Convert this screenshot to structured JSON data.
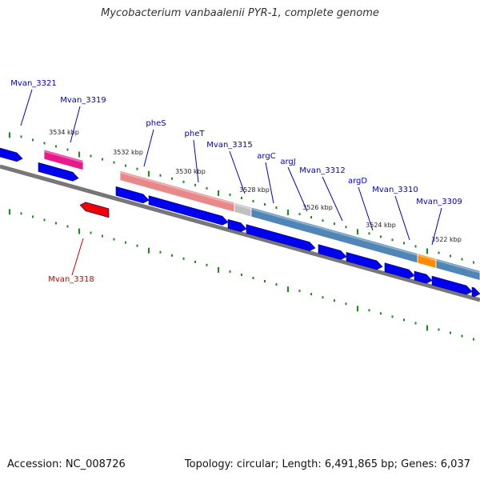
{
  "title": "Mycobacterium vanbaalenii PYR-1, complete genome",
  "footer": {
    "accession": "Accession: NC_008726",
    "topology": "Topology: circular; Length: 6,491,865 bp; Genes: 6,037"
  },
  "colors": {
    "background": "#ffffff",
    "gene_blue": "#0000ee",
    "gene_red": "#ee0000",
    "label_blue": "#0000cc",
    "label_red": "#cc0000",
    "tick_green": "#228b22",
    "backbone_gray": "#777777",
    "operon_steel": "#4f86b5",
    "pheT_salmon": "#e88888",
    "pink_feature": "#e8198b",
    "orange_feature": "#ff8c00",
    "light_gray_feature": "#c0c0c0"
  },
  "scale_labels": [
    "3534 kbp",
    "3532 kbp",
    "3530 kbp",
    "3528 kbp",
    "3526 kbp",
    "3524 kbp",
    "3522 kbp"
  ],
  "gene_labels": [
    {
      "text": "Mvan_3321",
      "color": "blue"
    },
    {
      "text": "Mvan_3319",
      "color": "blue"
    },
    {
      "text": "pheS",
      "color": "blue"
    },
    {
      "text": "pheT",
      "color": "blue"
    },
    {
      "text": "Mvan_3315",
      "color": "blue"
    },
    {
      "text": "argC",
      "color": "blue"
    },
    {
      "text": "argJ",
      "color": "blue"
    },
    {
      "text": "Mvan_3312",
      "color": "blue"
    },
    {
      "text": "argD",
      "color": "blue"
    },
    {
      "text": "Mvan_3310",
      "color": "blue"
    },
    {
      "text": "Mvan_3309",
      "color": "blue"
    },
    {
      "text": "Mvan_3318",
      "color": "red"
    }
  ]
}
